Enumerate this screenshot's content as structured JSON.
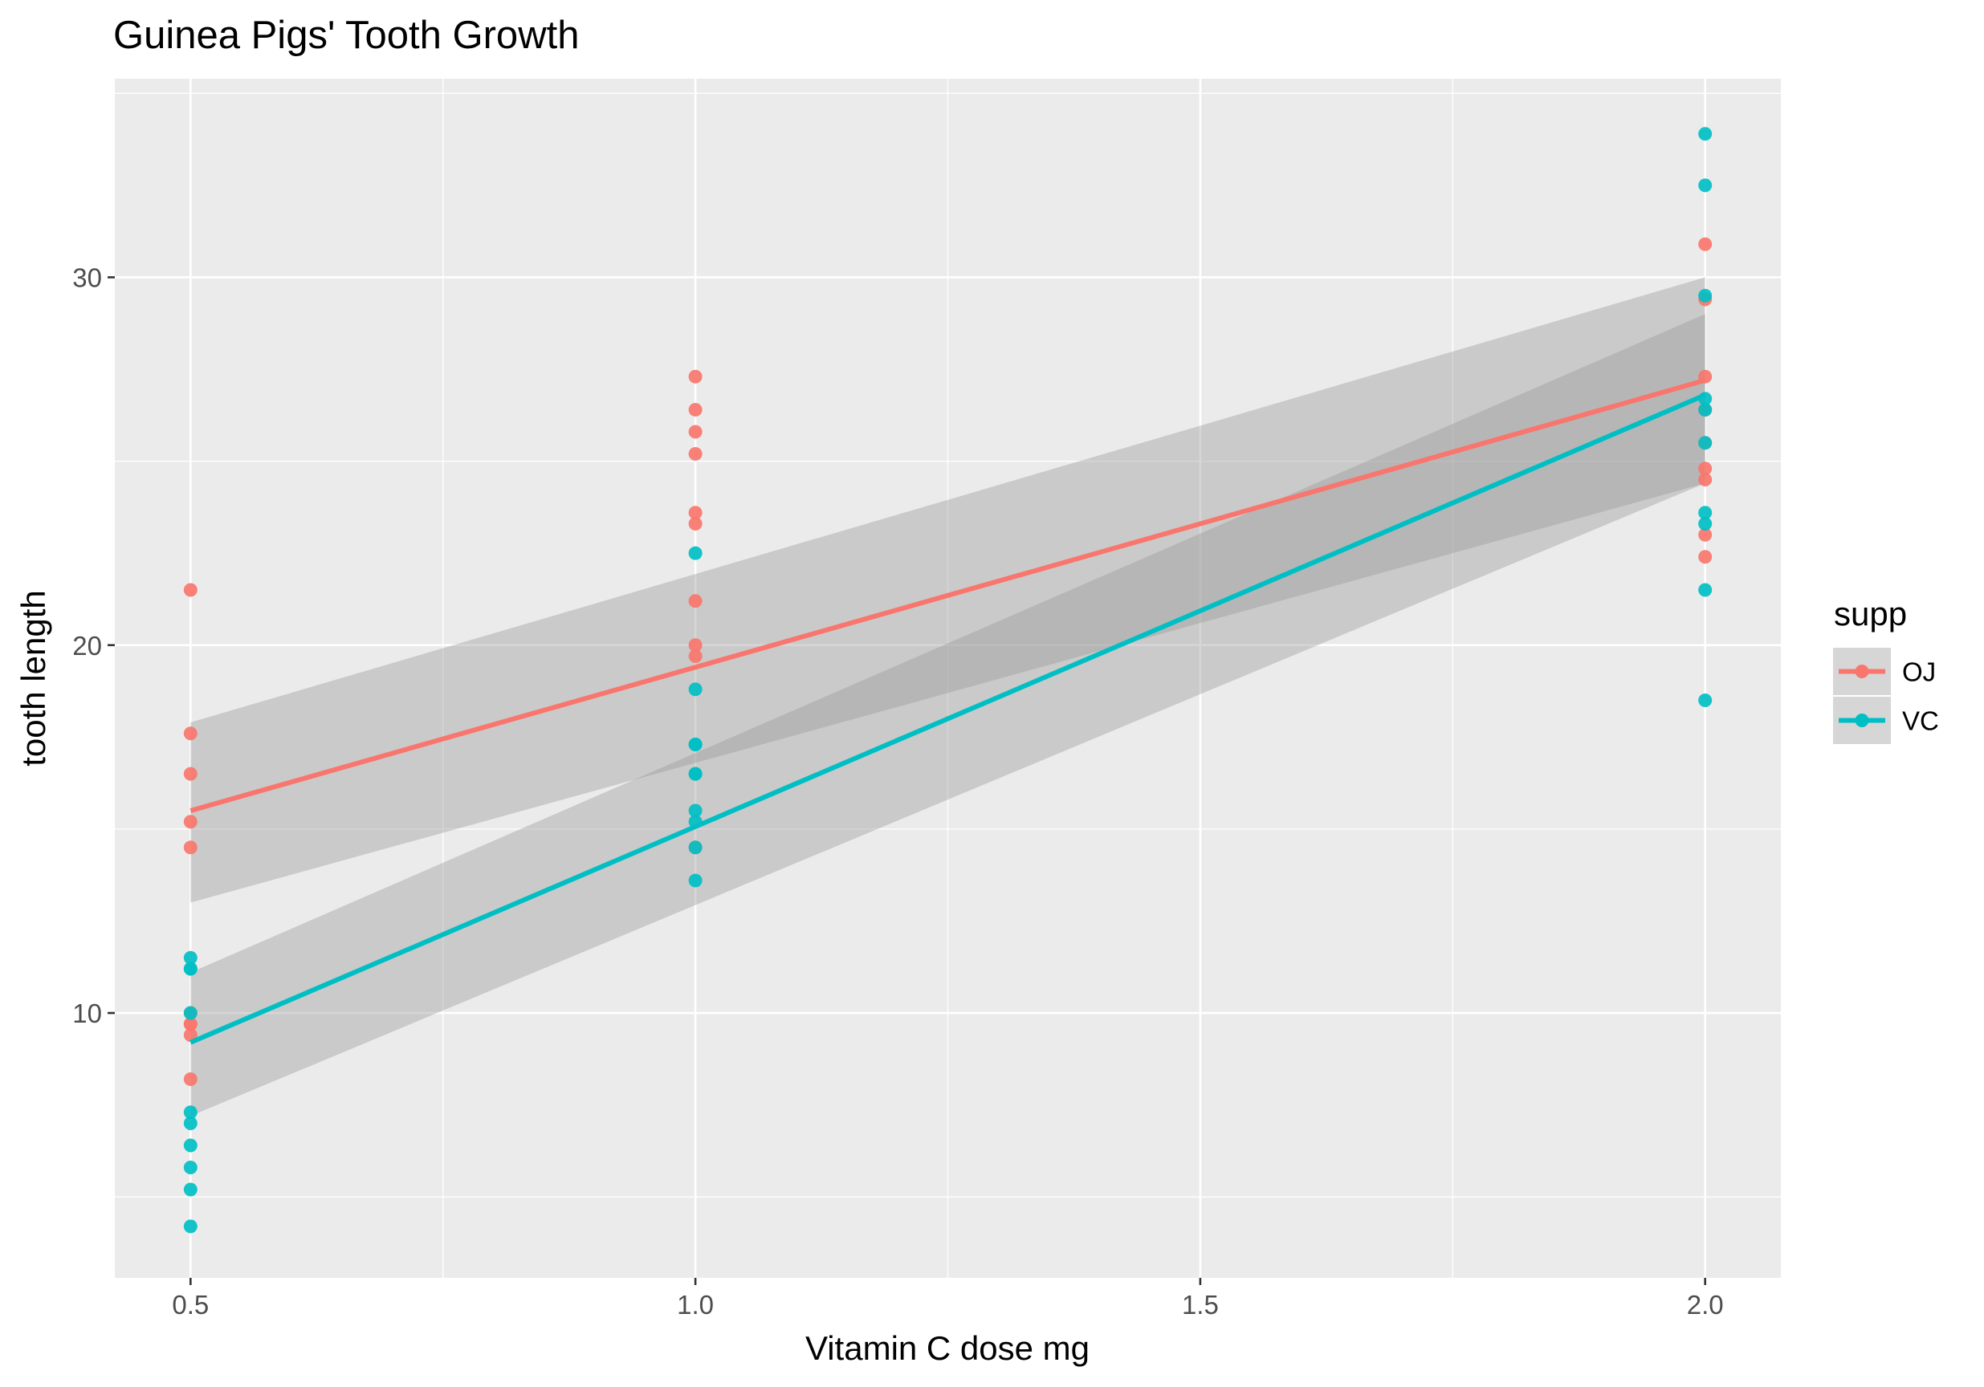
{
  "chart_data": {
    "type": "scatter",
    "title": "Guinea Pigs' Tooth Growth",
    "xlabel": "Vitamin C dose mg",
    "ylabel": "tooth length",
    "xlim": [
      0.425,
      2.075
    ],
    "ylim": [
      2.8,
      35.4
    ],
    "x_ticks": [
      0.5,
      1.0,
      1.5,
      2.0
    ],
    "x_tick_labels": [
      "0.5",
      "1.0",
      "1.5",
      "2.0"
    ],
    "x_minor_ticks": [
      0.75,
      1.25,
      1.75
    ],
    "y_ticks": [
      10,
      20,
      30
    ],
    "y_tick_labels": [
      "10",
      "20",
      "30"
    ],
    "y_minor_ticks": [
      5,
      15,
      25,
      35
    ],
    "grid": true,
    "legend": {
      "title": "supp",
      "position": "right"
    },
    "series": [
      {
        "name": "OJ",
        "color": "#F8766D",
        "points": [
          [
            0.5,
            15.2
          ],
          [
            0.5,
            21.5
          ],
          [
            0.5,
            17.6
          ],
          [
            0.5,
            9.7
          ],
          [
            0.5,
            14.5
          ],
          [
            0.5,
            10.0
          ],
          [
            0.5,
            8.2
          ],
          [
            0.5,
            9.4
          ],
          [
            0.5,
            16.5
          ],
          [
            0.5,
            9.7
          ],
          [
            1.0,
            19.7
          ],
          [
            1.0,
            23.3
          ],
          [
            1.0,
            23.6
          ],
          [
            1.0,
            26.4
          ],
          [
            1.0,
            20.0
          ],
          [
            1.0,
            25.2
          ],
          [
            1.0,
            25.8
          ],
          [
            1.0,
            21.2
          ],
          [
            1.0,
            14.5
          ],
          [
            1.0,
            27.3
          ],
          [
            2.0,
            25.5
          ],
          [
            2.0,
            26.4
          ],
          [
            2.0,
            22.4
          ],
          [
            2.0,
            24.5
          ],
          [
            2.0,
            24.8
          ],
          [
            2.0,
            30.9
          ],
          [
            2.0,
            26.4
          ],
          [
            2.0,
            27.3
          ],
          [
            2.0,
            29.4
          ],
          [
            2.0,
            23.0
          ]
        ],
        "fit": {
          "x": [
            0.5,
            2.0
          ],
          "y": [
            15.5,
            27.2
          ]
        },
        "ci_lower": [
          13.0,
          24.4
        ],
        "ci_upper": [
          17.9,
          30.0
        ]
      },
      {
        "name": "VC",
        "color": "#00BFC4",
        "points": [
          [
            0.5,
            4.2
          ],
          [
            0.5,
            11.5
          ],
          [
            0.5,
            7.3
          ],
          [
            0.5,
            5.8
          ],
          [
            0.5,
            6.4
          ],
          [
            0.5,
            10.0
          ],
          [
            0.5,
            11.2
          ],
          [
            0.5,
            11.2
          ],
          [
            0.5,
            5.2
          ],
          [
            0.5,
            7.0
          ],
          [
            1.0,
            16.5
          ],
          [
            1.0,
            16.5
          ],
          [
            1.0,
            15.2
          ],
          [
            1.0,
            17.3
          ],
          [
            1.0,
            22.5
          ],
          [
            1.0,
            17.3
          ],
          [
            1.0,
            13.6
          ],
          [
            1.0,
            14.5
          ],
          [
            1.0,
            18.8
          ],
          [
            1.0,
            15.5
          ],
          [
            2.0,
            23.6
          ],
          [
            2.0,
            18.5
          ],
          [
            2.0,
            33.9
          ],
          [
            2.0,
            25.5
          ],
          [
            2.0,
            26.4
          ],
          [
            2.0,
            32.5
          ],
          [
            2.0,
            26.7
          ],
          [
            2.0,
            21.5
          ],
          [
            2.0,
            23.3
          ],
          [
            2.0,
            29.5
          ]
        ],
        "fit": {
          "x": [
            0.5,
            2.0
          ],
          "y": [
            9.2,
            26.8
          ]
        },
        "ci_lower": [
          7.2,
          24.4
        ],
        "ci_upper": [
          11.1,
          29.0
        ]
      }
    ],
    "colors": {
      "panel_background": "#EBEBEB",
      "grid_major": "#FFFFFF",
      "ribbon": "#999999"
    }
  }
}
